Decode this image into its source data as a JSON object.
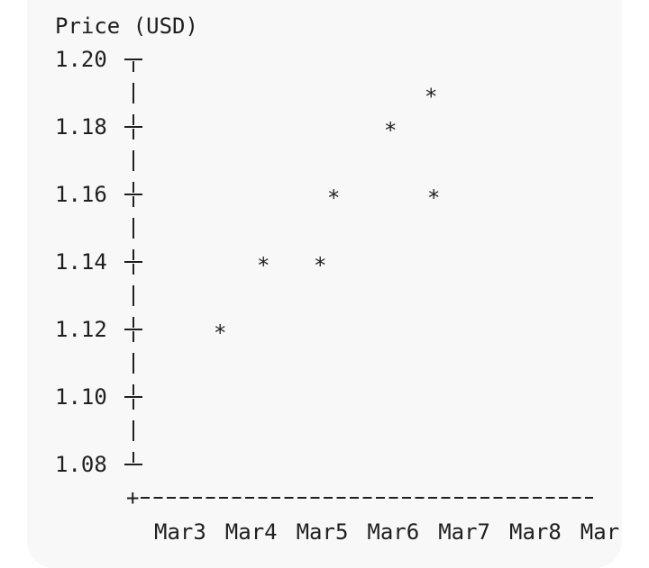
{
  "chart_data": {
    "type": "scatter",
    "ylabel": "Price (USD)",
    "xlabel": "",
    "y_ticks": [
      "1.20",
      "1.18",
      "1.16",
      "1.14",
      "1.12",
      "1.10",
      "1.08"
    ],
    "x_ticks": [
      "Mar3",
      "Mar4",
      "Mar5",
      "Mar6",
      "Mar7",
      "Mar8",
      "Mar"
    ],
    "ylim": [
      1.08,
      1.2
    ],
    "marker": "*",
    "points": [
      {
        "x": "Mar4",
        "y": 1.12
      },
      {
        "x": "Mar4",
        "y": 1.14
      },
      {
        "x": "Mar5",
        "y": 1.14
      },
      {
        "x": "Mar5",
        "y": 1.16
      },
      {
        "x": "Mar6",
        "y": 1.18
      },
      {
        "x": "Mar6",
        "y": 1.19
      },
      {
        "x": "Mar6",
        "y": 1.16
      }
    ],
    "grid": false
  }
}
